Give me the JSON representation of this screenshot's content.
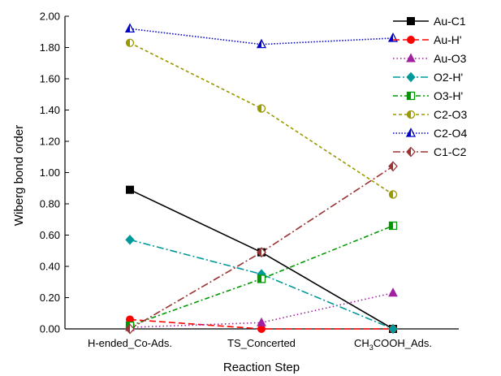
{
  "chart_data": {
    "type": "line",
    "title": "",
    "xlabel": "Reaction Step",
    "ylabel": "Wiberg bond order",
    "ylim": [
      0,
      2.0
    ],
    "yticks": [
      "0.00",
      "0.20",
      "0.40",
      "0.60",
      "0.80",
      "1.00",
      "1.20",
      "1.40",
      "1.60",
      "1.80",
      "2.00"
    ],
    "categories": [
      {
        "main": "H-ended_Co-Ads.",
        "pre": "",
        "sub": "",
        "post": ""
      },
      {
        "main": "TS_Concerted",
        "pre": "",
        "sub": "",
        "post": ""
      },
      {
        "main": "",
        "pre": "CH",
        "sub": "3",
        "post": "COOH_Ads."
      }
    ],
    "grid": false,
    "legend_position": "right",
    "series": [
      {
        "name": "Au-C1",
        "color": "#000000",
        "dash": "",
        "marker": "square",
        "values": [
          0.89,
          0.49,
          0.0
        ]
      },
      {
        "name": "Au-H'",
        "color": "#ff0000",
        "dash": "8,4",
        "marker": "circle",
        "values": [
          0.06,
          0.0,
          0.0
        ]
      },
      {
        "name": "Au-O3",
        "color": "#a020a0",
        "dash": "1.5,3",
        "marker": "triangle",
        "values": [
          0.01,
          0.04,
          0.23
        ]
      },
      {
        "name": "O2-H'",
        "color": "#009999",
        "dash": "9,3,2,3",
        "marker": "diamond",
        "values": [
          0.57,
          0.35,
          0.0
        ]
      },
      {
        "name": "O3-H'",
        "color": "#009900",
        "dash": "6,3,2,3",
        "marker": "square-half",
        "values": [
          0.02,
          0.32,
          0.66
        ]
      },
      {
        "name": "C2-O3",
        "color": "#999900",
        "dash": "4,3",
        "marker": "circle-half",
        "values": [
          1.83,
          1.41,
          0.86
        ]
      },
      {
        "name": "C2-O4",
        "color": "#0000cc",
        "dash": "1.5,2",
        "marker": "triangle-open",
        "values": [
          1.92,
          1.82,
          1.86
        ]
      },
      {
        "name": "C1-C2",
        "color": "#993333",
        "dash": "9,3,2,3",
        "marker": "diamond-half",
        "values": [
          0.0,
          0.49,
          1.04
        ]
      }
    ]
  }
}
